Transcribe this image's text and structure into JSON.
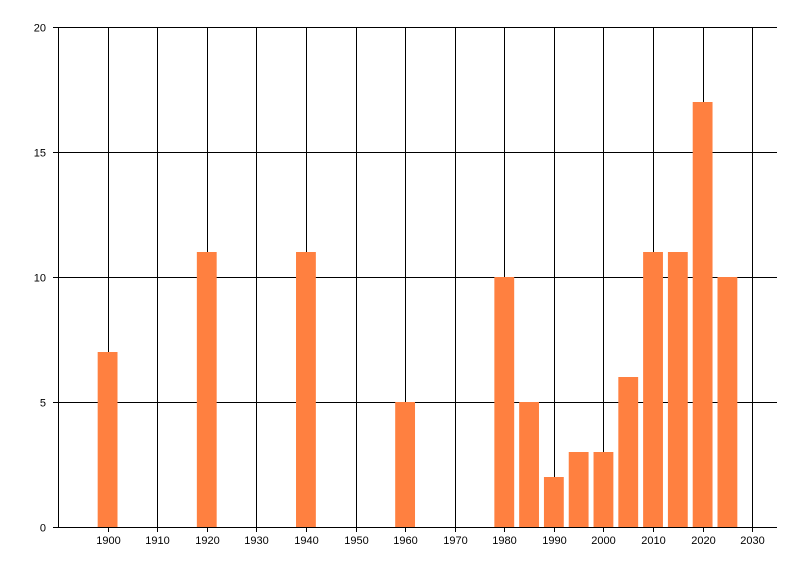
{
  "chart_data": {
    "type": "bar",
    "x": [
      1900,
      1920,
      1940,
      1960,
      1980,
      1985,
      1990,
      1995,
      2000,
      2005,
      2010,
      2015,
      2020,
      2025
    ],
    "series": [
      {
        "values": [
          7,
          11,
          11,
          5,
          10,
          5,
          2,
          3,
          3,
          6,
          11,
          11,
          17,
          10
        ],
        "color": "#ff8040"
      }
    ],
    "xlim": [
      1890,
      2035
    ],
    "ylim": [
      0,
      20
    ],
    "xticks": [
      "1900",
      "1910",
      "1920",
      "1930",
      "1940",
      "1950",
      "1960",
      "1970",
      "1980",
      "1990",
      "2000",
      "2010",
      "2020",
      "2030"
    ],
    "yticks": [
      "0",
      "5",
      "10",
      "15",
      "20"
    ],
    "grid": true,
    "title": "",
    "xlabel": "",
    "ylabel": ""
  }
}
